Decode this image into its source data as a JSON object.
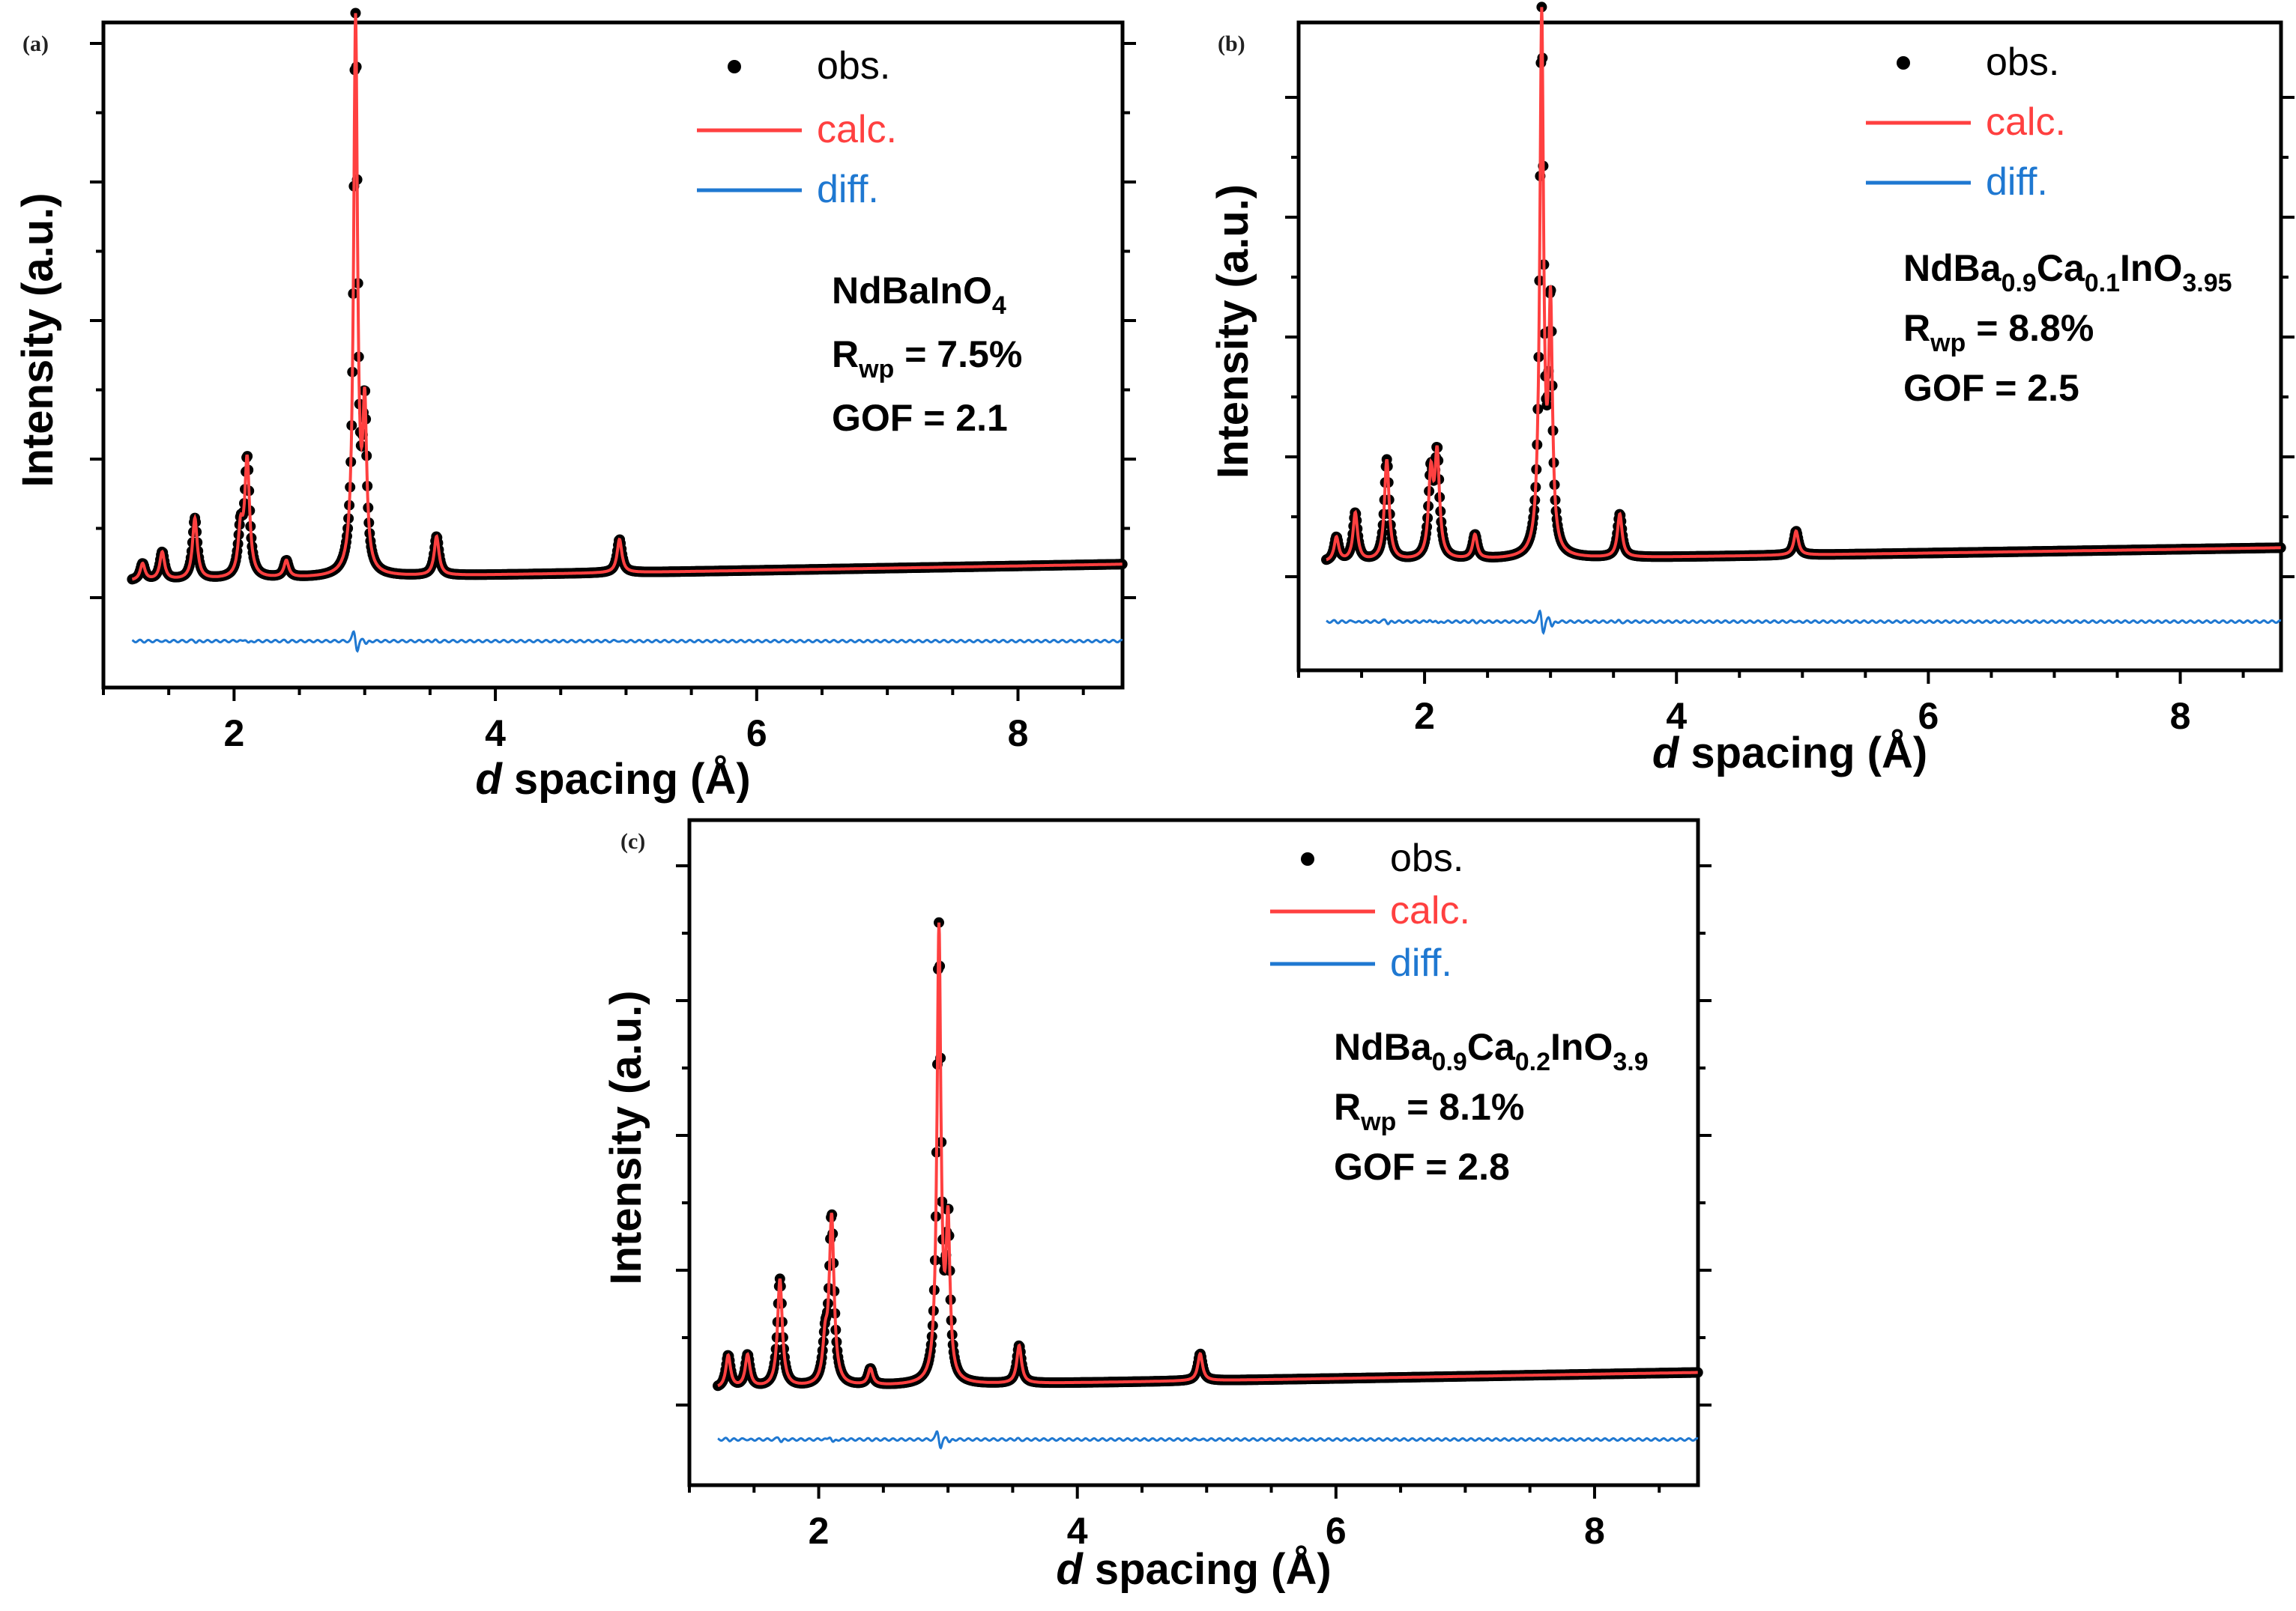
{
  "colors": {
    "obs": "#000000",
    "calc": "#ff4040",
    "diff": "#1f78d1",
    "axis": "#000000"
  },
  "chart_data": [
    {
      "type": "line",
      "panel": "(a)",
      "xlabel_italic": "d",
      "xlabel_rest": " spacing (Å)",
      "ylabel": "Intensity (a.u.)",
      "xlim": [
        1.0,
        8.8
      ],
      "x_ticks": [
        "2",
        "4",
        "6",
        "8"
      ],
      "series": [
        {
          "name": "obs.",
          "style": "points"
        },
        {
          "name": "calc.",
          "style": "line"
        },
        {
          "name": "diff.",
          "style": "line"
        }
      ],
      "peaks": [
        {
          "d": 1.3,
          "h": 0.03
        },
        {
          "d": 1.45,
          "h": 0.05
        },
        {
          "d": 1.7,
          "h": 0.11
        },
        {
          "d": 2.05,
          "h": 0.08
        },
        {
          "d": 2.1,
          "h": 0.21
        },
        {
          "d": 2.4,
          "h": 0.03
        },
        {
          "d": 2.93,
          "h": 1.0
        },
        {
          "d": 3.0,
          "h": 0.28
        },
        {
          "d": 3.55,
          "h": 0.07
        },
        {
          "d": 4.95,
          "h": 0.06
        }
      ],
      "formula": {
        "base": "NdBaInO",
        "sub": "4"
      },
      "rwp": {
        "r": "R",
        "sub": "wp",
        "value": " = 7.5%"
      },
      "gof": "GOF = 2.1"
    },
    {
      "type": "line",
      "panel": "(b)",
      "xlabel_italic": "d",
      "xlabel_rest": " spacing (Å)",
      "ylabel": "Intensity (a.u.)",
      "xlim": [
        1.0,
        8.8
      ],
      "x_ticks": [
        "2",
        "4",
        "6",
        "8"
      ],
      "series": [
        {
          "name": "obs.",
          "style": "points"
        },
        {
          "name": "calc.",
          "style": "line"
        },
        {
          "name": "diff.",
          "style": "line"
        }
      ],
      "peaks": [
        {
          "d": 1.3,
          "h": 0.05
        },
        {
          "d": 1.45,
          "h": 0.1
        },
        {
          "d": 1.7,
          "h": 0.21
        },
        {
          "d": 2.05,
          "h": 0.17
        },
        {
          "d": 2.1,
          "h": 0.21
        },
        {
          "d": 2.4,
          "h": 0.05
        },
        {
          "d": 2.93,
          "h": 1.12
        },
        {
          "d": 3.0,
          "h": 0.5
        },
        {
          "d": 3.55,
          "h": 0.09
        },
        {
          "d": 4.95,
          "h": 0.05
        }
      ],
      "formula": {
        "parts": [
          {
            "t": "NdBa"
          },
          {
            "s": "0.9"
          },
          {
            "t": "Ca"
          },
          {
            "s": "0.1"
          },
          {
            "t": "InO"
          },
          {
            "s": "3.95"
          }
        ]
      },
      "rwp": {
        "r": "R",
        "sub": "wp",
        "value": " = 8.8%"
      },
      "gof": "GOF = 2.5"
    },
    {
      "type": "line",
      "panel": "(c)",
      "xlabel_italic": "d",
      "xlabel_rest": " spacing (Å)",
      "ylabel": "Intensity (a.u.)",
      "xlim": [
        1.0,
        8.8
      ],
      "x_ticks": [
        "2",
        "4",
        "6",
        "8"
      ],
      "series": [
        {
          "name": "obs.",
          "style": "points"
        },
        {
          "name": "calc.",
          "style": "line"
        },
        {
          "name": "diff.",
          "style": "line"
        }
      ],
      "peaks": [
        {
          "d": 1.3,
          "h": 0.06
        },
        {
          "d": 1.45,
          "h": 0.06
        },
        {
          "d": 1.7,
          "h": 0.2
        },
        {
          "d": 2.05,
          "h": 0.07
        },
        {
          "d": 2.1,
          "h": 0.31
        },
        {
          "d": 2.4,
          "h": 0.03
        },
        {
          "d": 2.93,
          "h": 0.84
        },
        {
          "d": 3.0,
          "h": 0.28
        },
        {
          "d": 3.55,
          "h": 0.07
        },
        {
          "d": 4.95,
          "h": 0.05
        }
      ],
      "formula": {
        "parts": [
          {
            "t": "NdBa"
          },
          {
            "s": "0.9"
          },
          {
            "t": "Ca"
          },
          {
            "s": "0.2"
          },
          {
            "t": "InO"
          },
          {
            "s": "3.9"
          }
        ]
      },
      "rwp": {
        "r": "R",
        "sub": "wp",
        "value": " = 8.1%"
      },
      "gof": "GOF = 2.8"
    }
  ]
}
